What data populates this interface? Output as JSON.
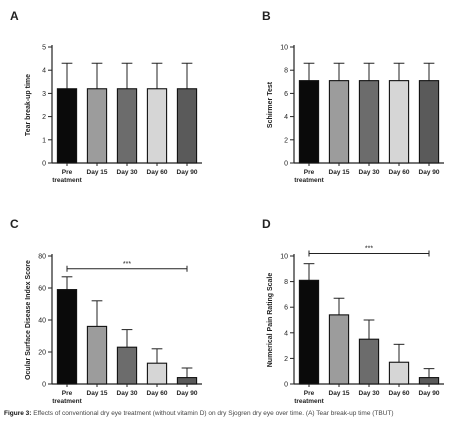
{
  "figure": {
    "caption_lead": "Figure 3:",
    "caption_text": "Effects of conventional dry eye treatment (without vitamin D) on dry Sjogren dry eye over time. (A) Tear break-up time (TBUT)"
  },
  "chart_data": [
    {
      "panel": "A",
      "type": "bar",
      "categories": [
        [
          "Pre",
          "treatment"
        ],
        [
          "Day 15"
        ],
        [
          "Day 30"
        ],
        [
          "Day 60"
        ],
        [
          "Day 90"
        ]
      ],
      "values": [
        3.2,
        3.2,
        3.2,
        3.2,
        3.2
      ],
      "errors": [
        1.1,
        1.1,
        1.1,
        1.1,
        1.1
      ],
      "ylabel": "Tear break-up time",
      "ylim": [
        0,
        5
      ],
      "yticks": [
        0,
        1,
        2,
        3,
        4,
        5
      ],
      "significance": null,
      "colors": [
        "#0a0a0a",
        "#9c9c9c",
        "#6c6c6c",
        "#d6d6d6",
        "#5a5a5a"
      ]
    },
    {
      "panel": "B",
      "type": "bar",
      "categories": [
        [
          "Pre",
          "treatment"
        ],
        [
          "Day 15"
        ],
        [
          "Day 30"
        ],
        [
          "Day 60"
        ],
        [
          "Day 90"
        ]
      ],
      "values": [
        7.1,
        7.1,
        7.1,
        7.1,
        7.1
      ],
      "errors": [
        1.5,
        1.5,
        1.5,
        1.5,
        1.5
      ],
      "ylabel": "Schirmer Test",
      "ylim": [
        0,
        10
      ],
      "yticks": [
        0,
        2,
        4,
        6,
        8,
        10
      ],
      "significance": null,
      "colors": [
        "#0a0a0a",
        "#9c9c9c",
        "#6c6c6c",
        "#d6d6d6",
        "#5a5a5a"
      ]
    },
    {
      "panel": "C",
      "type": "bar",
      "categories": [
        [
          "Pre",
          "treatment"
        ],
        [
          "Day 15"
        ],
        [
          "Day 30"
        ],
        [
          "Day 60"
        ],
        [
          "Day 90"
        ]
      ],
      "values": [
        59,
        36,
        23,
        13,
        4
      ],
      "errors": [
        8,
        16,
        11,
        9,
        6
      ],
      "ylabel": "Ocular Surface Disease Index Score",
      "ylim": [
        0,
        80
      ],
      "yticks": [
        0,
        20,
        40,
        60,
        80
      ],
      "significance": {
        "from": 0,
        "to": 4,
        "y": 72,
        "label": "***"
      },
      "colors": [
        "#0a0a0a",
        "#9c9c9c",
        "#6c6c6c",
        "#d6d6d6",
        "#5a5a5a"
      ]
    },
    {
      "panel": "D",
      "type": "bar",
      "categories": [
        [
          "Pre",
          "treatment"
        ],
        [
          "Day 15"
        ],
        [
          "Day 30"
        ],
        [
          "Day 60"
        ],
        [
          "Day 90"
        ]
      ],
      "values": [
        8.1,
        5.4,
        3.5,
        1.7,
        0.5
      ],
      "errors": [
        1.3,
        1.3,
        1.5,
        1.4,
        0.7
      ],
      "ylabel": "Numerical Pain Rating Scale",
      "ylim": [
        0,
        10
      ],
      "yticks": [
        0,
        2,
        4,
        6,
        8,
        10
      ],
      "significance": {
        "from": 0,
        "to": 4,
        "y": 10.2,
        "label": "***"
      },
      "colors": [
        "#0a0a0a",
        "#9c9c9c",
        "#6c6c6c",
        "#d6d6d6",
        "#5a5a5a"
      ]
    }
  ]
}
